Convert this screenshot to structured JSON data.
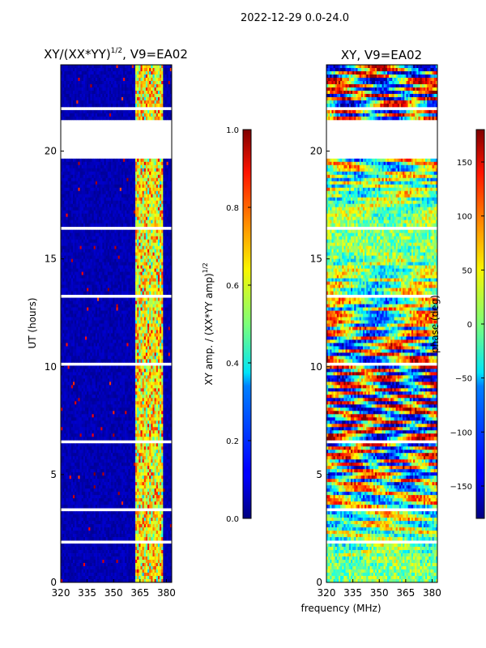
{
  "figure": {
    "suptitle": "2022-12-29 0.0-24.0",
    "xlabel_shared": "frequency (MHz)"
  },
  "chart_data": [
    {
      "type": "heatmap",
      "title": "XY/(XX*YY)",
      "title_exponent": "1/2",
      "title_suffix": ", V9=EA02",
      "ylabel": "UT (hours)",
      "xlabel": "",
      "xlim": [
        320,
        383
      ],
      "ylim": [
        0,
        24
      ],
      "xticks": [
        "320",
        "335",
        "350",
        "365",
        "380"
      ],
      "xtick_values": [
        320,
        335,
        350,
        365,
        380
      ],
      "yticks": [
        "0",
        "5",
        "10",
        "15",
        "20"
      ],
      "ytick_values": [
        0,
        5,
        10,
        15,
        20
      ],
      "colorbar": {
        "label": "XY amp. / (XX*YY amp)",
        "label_exponent": "1/2",
        "range": [
          0.0,
          1.0
        ],
        "ticks": [
          "0.0",
          "0.2",
          "0.4",
          "0.6",
          "0.8",
          "1.0"
        ],
        "tick_values": [
          0.0,
          0.2,
          0.4,
          0.6,
          0.8,
          1.0
        ]
      }
    },
    {
      "type": "heatmap",
      "title": "XY, V9=EA02",
      "xlim": [
        320,
        383
      ],
      "ylim": [
        0,
        24
      ],
      "xticks": [
        "320",
        "335",
        "350",
        "365",
        "380"
      ],
      "xtick_values": [
        320,
        335,
        350,
        365,
        380
      ],
      "yticks": [
        "0",
        "5",
        "10",
        "15",
        "20"
      ],
      "ytick_values": [
        0,
        5,
        10,
        15,
        20
      ],
      "colorbar": {
        "label": "phase (deg)",
        "range": [
          -180,
          180
        ],
        "ticks": [
          "−150",
          "−100",
          "−50",
          "0",
          "50",
          "100",
          "150"
        ],
        "tick_values": [
          -150,
          -100,
          -50,
          0,
          50,
          100,
          150
        ]
      }
    }
  ]
}
